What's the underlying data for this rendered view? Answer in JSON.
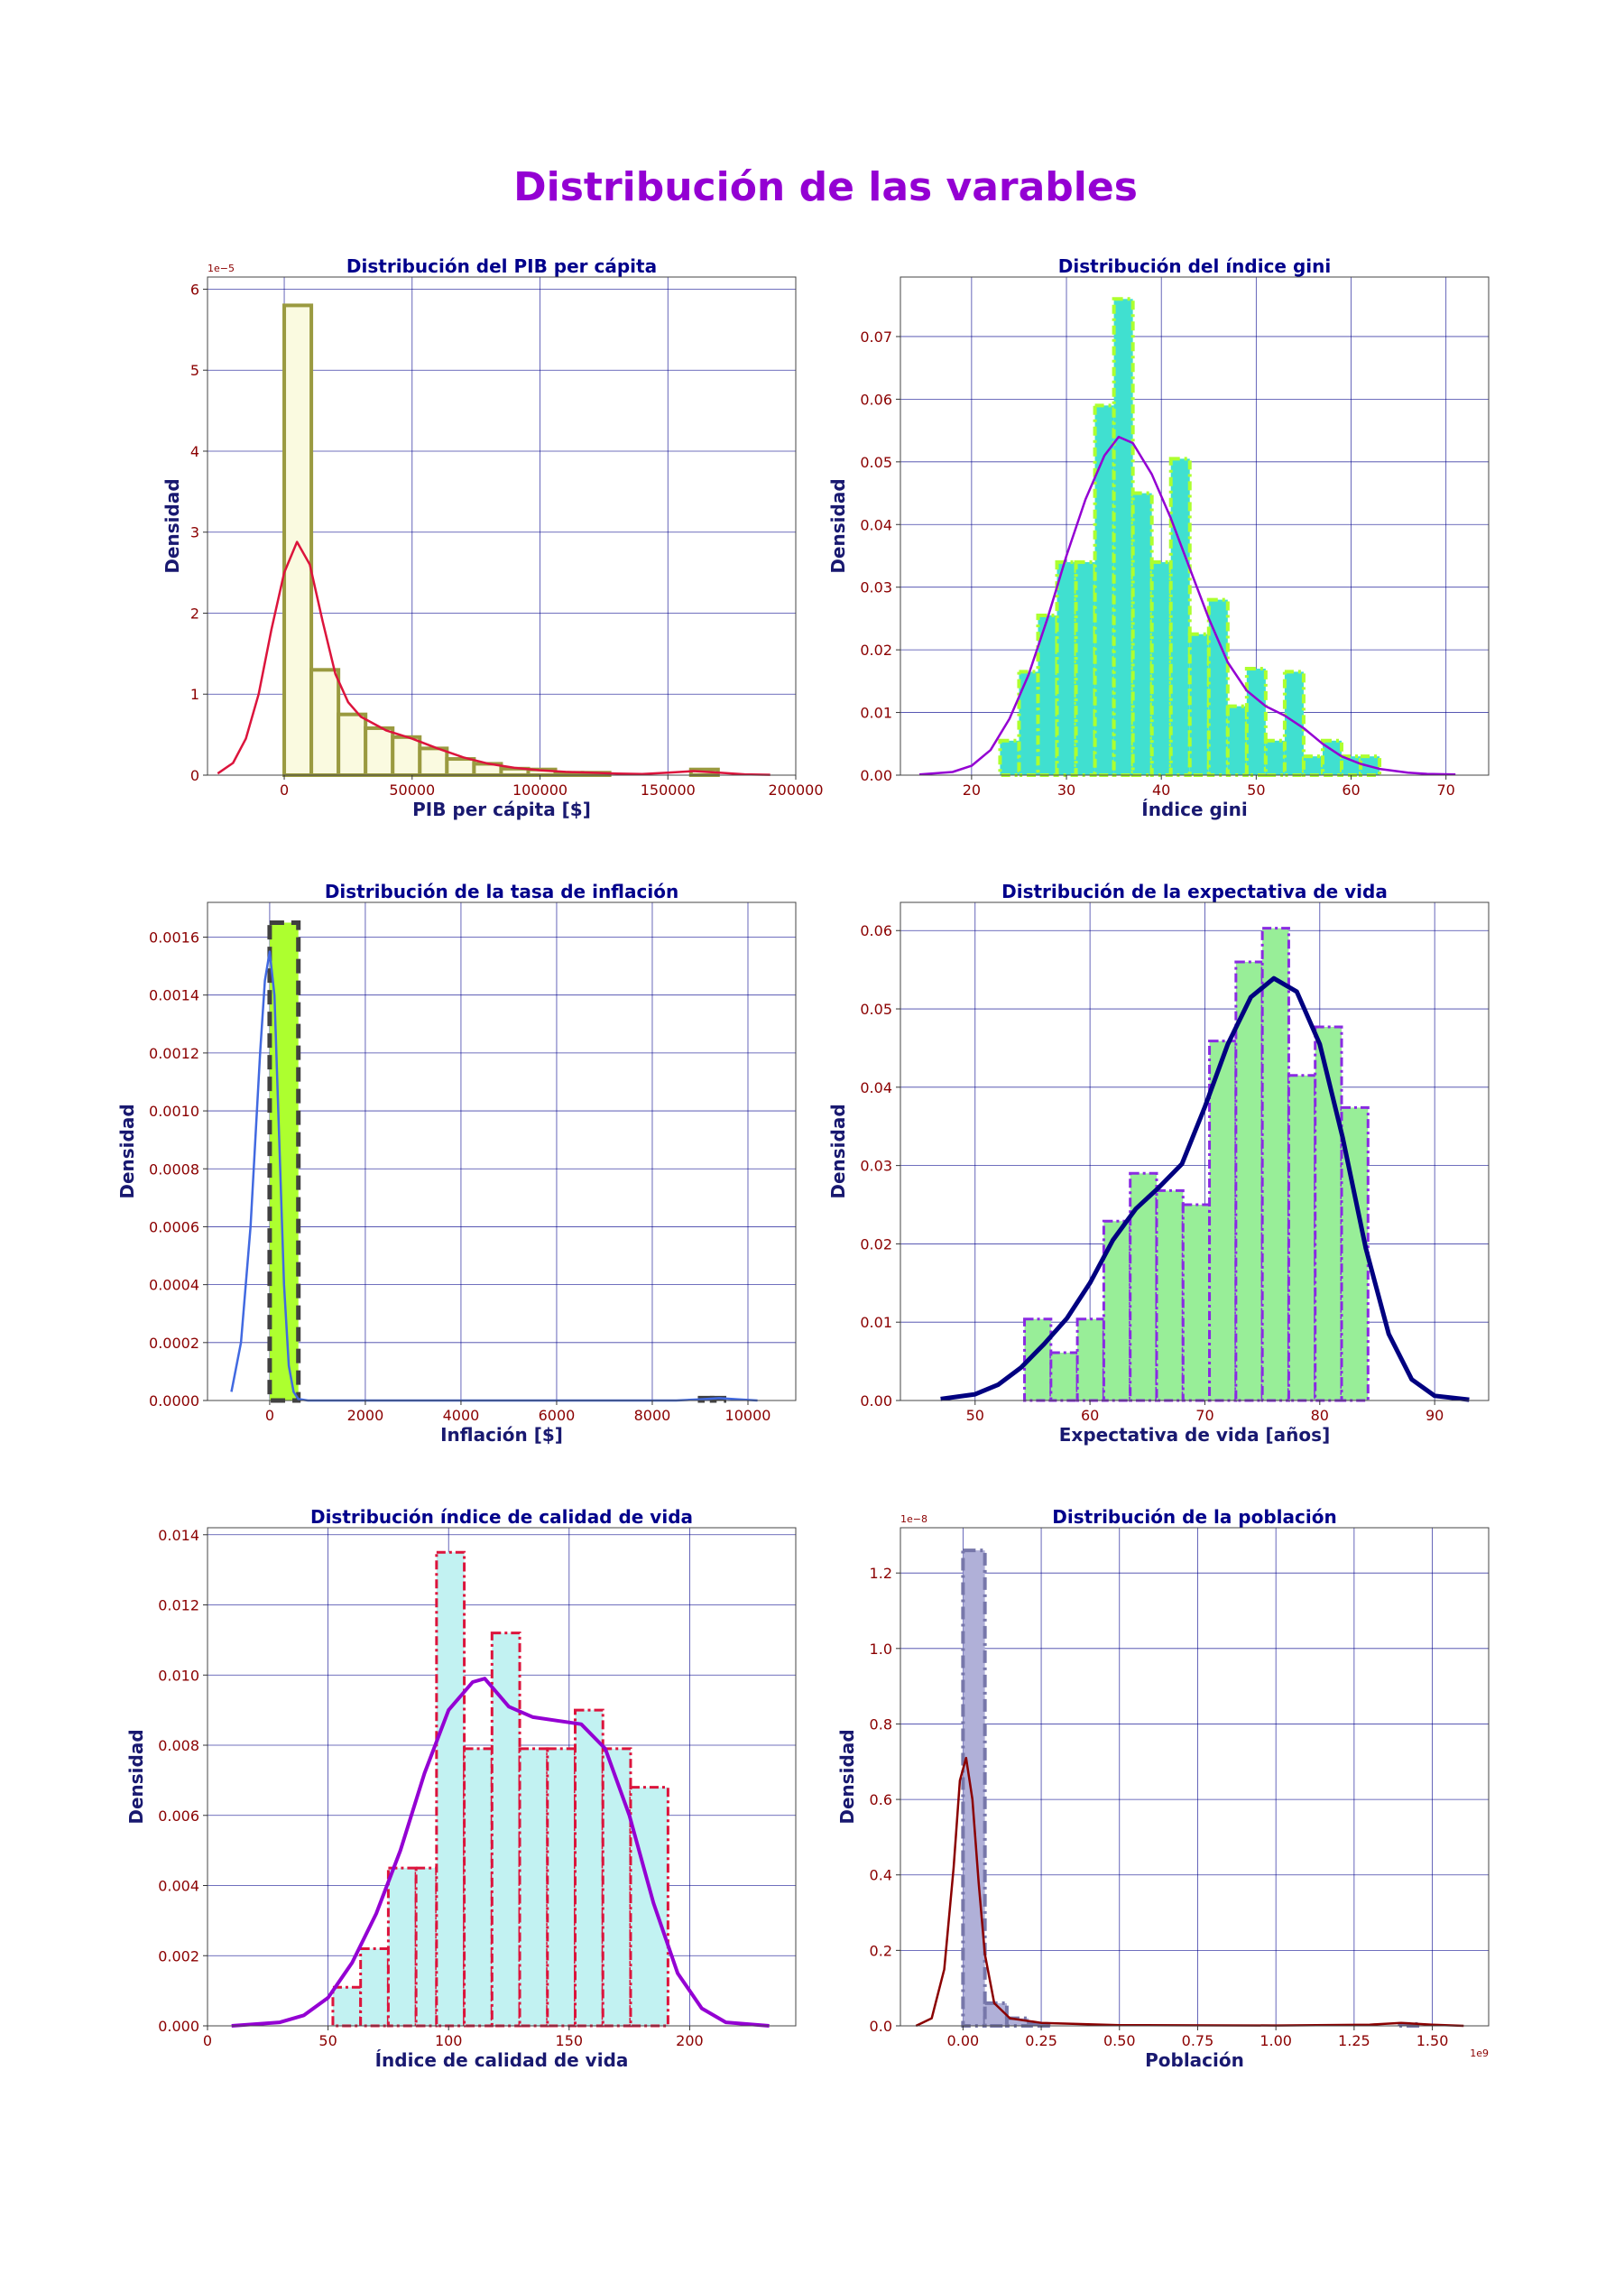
{
  "title": "Distribución de las varables",
  "colors": {
    "title": "#9400d3",
    "subplot_title": "#00008b",
    "axis_label": "#191970",
    "tick_label": "#8b0000",
    "grid": "#00008b"
  },
  "chart_data": [
    {
      "type": "bar",
      "title": "Distribución del PIB per cápita",
      "xlabel": "PIB per cápita [$]",
      "ylabel": "Densidad",
      "y_offset_label": "1e−5",
      "x_offset_label": "",
      "xlim": [
        -30000,
        200000
      ],
      "ylim": [
        0,
        6.15
      ],
      "xticks": [
        0,
        50000,
        100000,
        150000,
        200000
      ],
      "xtick_labels": [
        "0",
        "50000",
        "100000",
        "150000",
        "200000"
      ],
      "yticks": [
        0,
        1,
        2,
        3,
        4,
        5,
        6
      ],
      "ytick_labels": [
        "0",
        "1",
        "2",
        "3",
        "4",
        "5",
        "6"
      ],
      "grid": true,
      "bar_style": {
        "fill": "#fafae0",
        "stroke": "#9a9a40",
        "stroke_width": 4,
        "dash": ""
      },
      "bins": [
        [
          0,
          10600,
          5.8
        ],
        [
          10600,
          21200,
          1.3
        ],
        [
          21200,
          31800,
          0.75
        ],
        [
          31800,
          42400,
          0.58
        ],
        [
          42400,
          53000,
          0.47
        ],
        [
          53000,
          63600,
          0.33
        ],
        [
          63600,
          74200,
          0.2
        ],
        [
          74200,
          84800,
          0.14
        ],
        [
          84800,
          95400,
          0.08
        ],
        [
          95400,
          106000,
          0.07
        ],
        [
          106000,
          116600,
          0.03
        ],
        [
          116600,
          127200,
          0.03
        ],
        [
          127200,
          137800,
          0.0
        ],
        [
          137800,
          148400,
          0.0
        ],
        [
          148400,
          159000,
          0.0
        ],
        [
          159000,
          169600,
          0.07
        ]
      ],
      "kde_style": {
        "color": "#dc143c",
        "width": 2.5
      },
      "kde": [
        [
          -26000,
          0.02
        ],
        [
          -20000,
          0.15
        ],
        [
          -15000,
          0.45
        ],
        [
          -10000,
          1.0
        ],
        [
          -5000,
          1.8
        ],
        [
          0,
          2.5
        ],
        [
          5000,
          2.88
        ],
        [
          10000,
          2.6
        ],
        [
          15000,
          1.9
        ],
        [
          20000,
          1.25
        ],
        [
          25000,
          0.9
        ],
        [
          30000,
          0.72
        ],
        [
          40000,
          0.55
        ],
        [
          50000,
          0.45
        ],
        [
          60000,
          0.33
        ],
        [
          70000,
          0.22
        ],
        [
          80000,
          0.14
        ],
        [
          90000,
          0.09
        ],
        [
          100000,
          0.06
        ],
        [
          110000,
          0.04
        ],
        [
          120000,
          0.03
        ],
        [
          130000,
          0.02
        ],
        [
          140000,
          0.015
        ],
        [
          150000,
          0.03
        ],
        [
          160000,
          0.05
        ],
        [
          170000,
          0.03
        ],
        [
          180000,
          0.01
        ],
        [
          190000,
          0.005
        ]
      ]
    },
    {
      "type": "bar",
      "title": "Distribución del índice gini",
      "xlabel": "Índice gini",
      "ylabel": "Densidad",
      "y_offset_label": "",
      "x_offset_label": "",
      "xlim": [
        12.5,
        74.5
      ],
      "ylim": [
        0,
        0.0795
      ],
      "xticks": [
        20,
        30,
        40,
        50,
        60,
        70
      ],
      "xtick_labels": [
        "20",
        "30",
        "40",
        "50",
        "60",
        "70"
      ],
      "yticks": [
        0,
        0.01,
        0.02,
        0.03,
        0.04,
        0.05,
        0.06,
        0.07
      ],
      "ytick_labels": [
        "0.00",
        "0.01",
        "0.02",
        "0.03",
        "0.04",
        "0.05",
        "0.06",
        "0.07"
      ],
      "grid": true,
      "bar_style": {
        "fill": "#40e0d0",
        "stroke": "#adff2f",
        "stroke_width": 4,
        "dash": "10,5,3,5"
      },
      "bins": [
        [
          23,
          25,
          0.0055
        ],
        [
          25,
          27,
          0.0165
        ],
        [
          27,
          29,
          0.0255
        ],
        [
          29,
          31,
          0.034
        ],
        [
          31,
          33,
          0.034
        ],
        [
          33,
          35,
          0.059
        ],
        [
          35,
          37,
          0.076
        ],
        [
          37,
          39,
          0.045
        ],
        [
          39,
          41,
          0.034
        ],
        [
          41,
          43,
          0.0505
        ],
        [
          43,
          45,
          0.0225
        ],
        [
          45,
          47,
          0.028
        ],
        [
          47,
          49,
          0.011
        ],
        [
          49,
          51,
          0.017
        ],
        [
          51,
          53,
          0.0055
        ],
        [
          53,
          55,
          0.0165
        ],
        [
          55,
          57,
          0.003
        ],
        [
          57,
          59,
          0.0055
        ],
        [
          59,
          61,
          0.003
        ],
        [
          61,
          63,
          0.003
        ]
      ],
      "kde_style": {
        "color": "#9400d3",
        "width": 2.5
      },
      "kde": [
        [
          14.5,
          0.0001
        ],
        [
          18,
          0.0005
        ],
        [
          20,
          0.0015
        ],
        [
          22,
          0.004
        ],
        [
          24,
          0.009
        ],
        [
          26,
          0.016
        ],
        [
          28,
          0.025
        ],
        [
          30,
          0.035
        ],
        [
          32,
          0.044
        ],
        [
          34,
          0.051
        ],
        [
          35.5,
          0.054
        ],
        [
          37,
          0.053
        ],
        [
          39,
          0.048
        ],
        [
          41,
          0.041
        ],
        [
          43,
          0.033
        ],
        [
          45,
          0.025
        ],
        [
          47,
          0.018
        ],
        [
          49,
          0.0135
        ],
        [
          51,
          0.011
        ],
        [
          53,
          0.0095
        ],
        [
          55,
          0.0075
        ],
        [
          57,
          0.005
        ],
        [
          59,
          0.003
        ],
        [
          61,
          0.0018
        ],
        [
          63,
          0.001
        ],
        [
          66,
          0.0004
        ],
        [
          68,
          0.0002
        ],
        [
          71,
          0.0001
        ]
      ]
    },
    {
      "type": "bar",
      "title": "Distribución de la tasa de inflación",
      "xlabel": "Inflación [$]",
      "ylabel": "Densidad",
      "y_offset_label": "",
      "x_offset_label": "",
      "xlim": [
        -1300,
        11000
      ],
      "ylim": [
        0,
        0.00172
      ],
      "xticks": [
        0,
        2000,
        4000,
        6000,
        8000,
        10000
      ],
      "xtick_labels": [
        "0",
        "2000",
        "4000",
        "6000",
        "8000",
        "10000"
      ],
      "yticks": [
        0,
        0.0002,
        0.0004,
        0.0006,
        0.0008,
        0.001,
        0.0012,
        0.0014,
        0.0016
      ],
      "ytick_labels": [
        "0.0000",
        "0.0002",
        "0.0004",
        "0.0006",
        "0.0008",
        "0.0010",
        "0.0012",
        "0.0014",
        "0.0016"
      ],
      "grid": true,
      "bar_style": {
        "fill": "#adff2f",
        "stroke": "#404040",
        "stroke_width": 5,
        "dash": "16,8"
      },
      "bins": [
        [
          0,
          600,
          0.00165
        ],
        [
          9000,
          9250,
          8e-06
        ],
        [
          9250,
          9500,
          8e-06
        ]
      ],
      "kde_style": {
        "color": "#4169e1",
        "width": 2.5
      },
      "kde": [
        [
          -800,
          3e-05
        ],
        [
          -600,
          0.0002
        ],
        [
          -400,
          0.0006
        ],
        [
          -200,
          0.0012
        ],
        [
          -100,
          0.00145
        ],
        [
          0,
          0.00155
        ],
        [
          100,
          0.0014
        ],
        [
          200,
          0.0009
        ],
        [
          300,
          0.0004
        ],
        [
          400,
          0.00012
        ],
        [
          500,
          3e-05
        ],
        [
          600,
          5e-06
        ],
        [
          800,
          0.0
        ],
        [
          2000,
          0.0
        ],
        [
          8500,
          0.0
        ],
        [
          9000,
          4e-06
        ],
        [
          9400,
          8e-06
        ],
        [
          9800,
          4e-06
        ],
        [
          10200,
          0.0
        ]
      ]
    },
    {
      "type": "bar",
      "title": "Distribución de la expectativa de vida",
      "xlabel": "Expectativa de vida [años]",
      "ylabel": "Densidad",
      "y_offset_label": "",
      "x_offset_label": "",
      "xlim": [
        43.5,
        94.7
      ],
      "ylim": [
        0,
        0.0636
      ],
      "xticks": [
        50,
        60,
        70,
        80,
        90
      ],
      "xtick_labels": [
        "50",
        "60",
        "70",
        "80",
        "90"
      ],
      "yticks": [
        0,
        0.01,
        0.02,
        0.03,
        0.04,
        0.05,
        0.06
      ],
      "ytick_labels": [
        "0.00",
        "0.01",
        "0.02",
        "0.03",
        "0.04",
        "0.05",
        "0.06"
      ],
      "grid": true,
      "bar_style": {
        "fill": "#98ee98",
        "stroke": "#8a2be2",
        "stroke_width": 3,
        "dash": "10,4,3,4"
      },
      "bins": [
        [
          54.3,
          56.6,
          0.0104
        ],
        [
          56.6,
          58.9,
          0.0061
        ],
        [
          58.9,
          61.2,
          0.0104
        ],
        [
          61.2,
          63.5,
          0.0229
        ],
        [
          63.5,
          65.8,
          0.029
        ],
        [
          65.8,
          68.1,
          0.0268
        ],
        [
          68.1,
          70.4,
          0.025
        ],
        [
          70.4,
          72.7,
          0.0459
        ],
        [
          72.7,
          75.0,
          0.056
        ],
        [
          75.0,
          77.3,
          0.0603
        ],
        [
          77.3,
          79.6,
          0.0415
        ],
        [
          79.6,
          81.9,
          0.0477
        ],
        [
          81.9,
          84.2,
          0.0374
        ]
      ],
      "kde_style": {
        "color": "#000080",
        "width": 5
      },
      "kde": [
        [
          47,
          0.0002
        ],
        [
          50,
          0.0008
        ],
        [
          52,
          0.002
        ],
        [
          54,
          0.0042
        ],
        [
          56,
          0.0072
        ],
        [
          58,
          0.0105
        ],
        [
          60,
          0.015
        ],
        [
          62,
          0.0205
        ],
        [
          64,
          0.0245
        ],
        [
          66,
          0.0272
        ],
        [
          68,
          0.0302
        ],
        [
          70,
          0.0375
        ],
        [
          72,
          0.0455
        ],
        [
          74,
          0.0515
        ],
        [
          76,
          0.0539
        ],
        [
          78,
          0.0522
        ],
        [
          80,
          0.0455
        ],
        [
          82,
          0.0335
        ],
        [
          84,
          0.0195
        ],
        [
          86,
          0.0085
        ],
        [
          88,
          0.0027
        ],
        [
          90,
          0.0006
        ],
        [
          93,
          0.0001
        ]
      ]
    },
    {
      "type": "bar",
      "title": "Distribución índice de calidad de vida",
      "xlabel": "Índice de calidad de vida",
      "ylabel": "Densidad",
      "y_offset_label": "",
      "x_offset_label": "",
      "xlim": [
        0,
        244
      ],
      "ylim": [
        0,
        0.0142
      ],
      "xticks": [
        0,
        50,
        100,
        150,
        200
      ],
      "xtick_labels": [
        "0",
        "50",
        "100",
        "150",
        "200"
      ],
      "yticks": [
        0,
        0.002,
        0.004,
        0.006,
        0.008,
        0.01,
        0.012,
        0.014
      ],
      "ytick_labels": [
        "0.000",
        "0.002",
        "0.004",
        "0.006",
        "0.008",
        "0.010",
        "0.012",
        "0.014"
      ],
      "grid": true,
      "bar_style": {
        "fill": "#c2f2f2",
        "stroke": "#dc143c",
        "stroke_width": 3,
        "dash": "10,4,3,4"
      },
      "bins": [
        [
          52,
          63.5,
          0.0011
        ],
        [
          63.5,
          75,
          0.0022
        ],
        [
          75,
          86.5,
          0.0045
        ],
        [
          86.5,
          95,
          0.0045
        ],
        [
          95,
          106.5,
          0.0135
        ],
        [
          106.5,
          118,
          0.0079
        ],
        [
          118,
          129.5,
          0.0112
        ],
        [
          129.5,
          141,
          0.0079
        ],
        [
          141,
          152.5,
          0.0079
        ],
        [
          152.5,
          164,
          0.009
        ],
        [
          164,
          175.5,
          0.0079
        ],
        [
          175.5,
          191,
          0.0068
        ]
      ],
      "kde_style": {
        "color": "#9400d3",
        "width": 4
      },
      "kde": [
        [
          10,
          0.0
        ],
        [
          30,
          0.0001
        ],
        [
          40,
          0.0003
        ],
        [
          50,
          0.0008
        ],
        [
          60,
          0.0018
        ],
        [
          70,
          0.0032
        ],
        [
          80,
          0.005
        ],
        [
          90,
          0.0072
        ],
        [
          100,
          0.009
        ],
        [
          110,
          0.0098
        ],
        [
          115,
          0.0099
        ],
        [
          125,
          0.0091
        ],
        [
          135,
          0.0088
        ],
        [
          145,
          0.0087
        ],
        [
          155,
          0.0086
        ],
        [
          165,
          0.0079
        ],
        [
          175,
          0.006
        ],
        [
          185,
          0.0035
        ],
        [
          195,
          0.0015
        ],
        [
          205,
          0.0005
        ],
        [
          215,
          0.0001
        ],
        [
          233,
          0.0
        ]
      ]
    },
    {
      "type": "bar",
      "title": "Distribución de la población",
      "xlabel": "Población",
      "ylabel": "Densidad",
      "y_offset_label": "1e−8",
      "x_offset_label": "1e9",
      "xlim": [
        -0.2,
        1.68
      ],
      "ylim": [
        0,
        1.32
      ],
      "xticks": [
        0,
        0.25,
        0.5,
        0.75,
        1.0,
        1.25,
        1.5
      ],
      "xtick_labels": [
        "0.00",
        "0.25",
        "0.50",
        "0.75",
        "1.00",
        "1.25",
        "1.50"
      ],
      "yticks": [
        0,
        0.2,
        0.4,
        0.6,
        0.8,
        1.0,
        1.2
      ],
      "ytick_labels": [
        "0.0",
        "0.2",
        "0.4",
        "0.6",
        "0.8",
        "1.0",
        "1.2"
      ],
      "grid": true,
      "bar_style": {
        "fill": "#b0b0d8",
        "stroke": "#7777aa",
        "stroke_width": 4,
        "dash": "14,5,3,5"
      },
      "bins": [
        [
          0,
          0.07,
          1.26
        ],
        [
          0.07,
          0.14,
          0.06
        ],
        [
          0.14,
          0.21,
          0.02
        ],
        [
          0.21,
          0.28,
          0.005
        ],
        [
          1.39,
          1.46,
          0.005
        ]
      ],
      "kde_style": {
        "color": "#8b0000",
        "width": 2.5
      },
      "kde": [
        [
          -0.15,
          0.0
        ],
        [
          -0.1,
          0.02
        ],
        [
          -0.06,
          0.15
        ],
        [
          -0.03,
          0.42
        ],
        [
          -0.01,
          0.65
        ],
        [
          0.01,
          0.71
        ],
        [
          0.03,
          0.6
        ],
        [
          0.05,
          0.38
        ],
        [
          0.07,
          0.19
        ],
        [
          0.1,
          0.06
        ],
        [
          0.15,
          0.02
        ],
        [
          0.25,
          0.008
        ],
        [
          0.5,
          0.002
        ],
        [
          1.0,
          0.001
        ],
        [
          1.3,
          0.003
        ],
        [
          1.4,
          0.008
        ],
        [
          1.5,
          0.003
        ],
        [
          1.6,
          0.0
        ]
      ]
    }
  ]
}
